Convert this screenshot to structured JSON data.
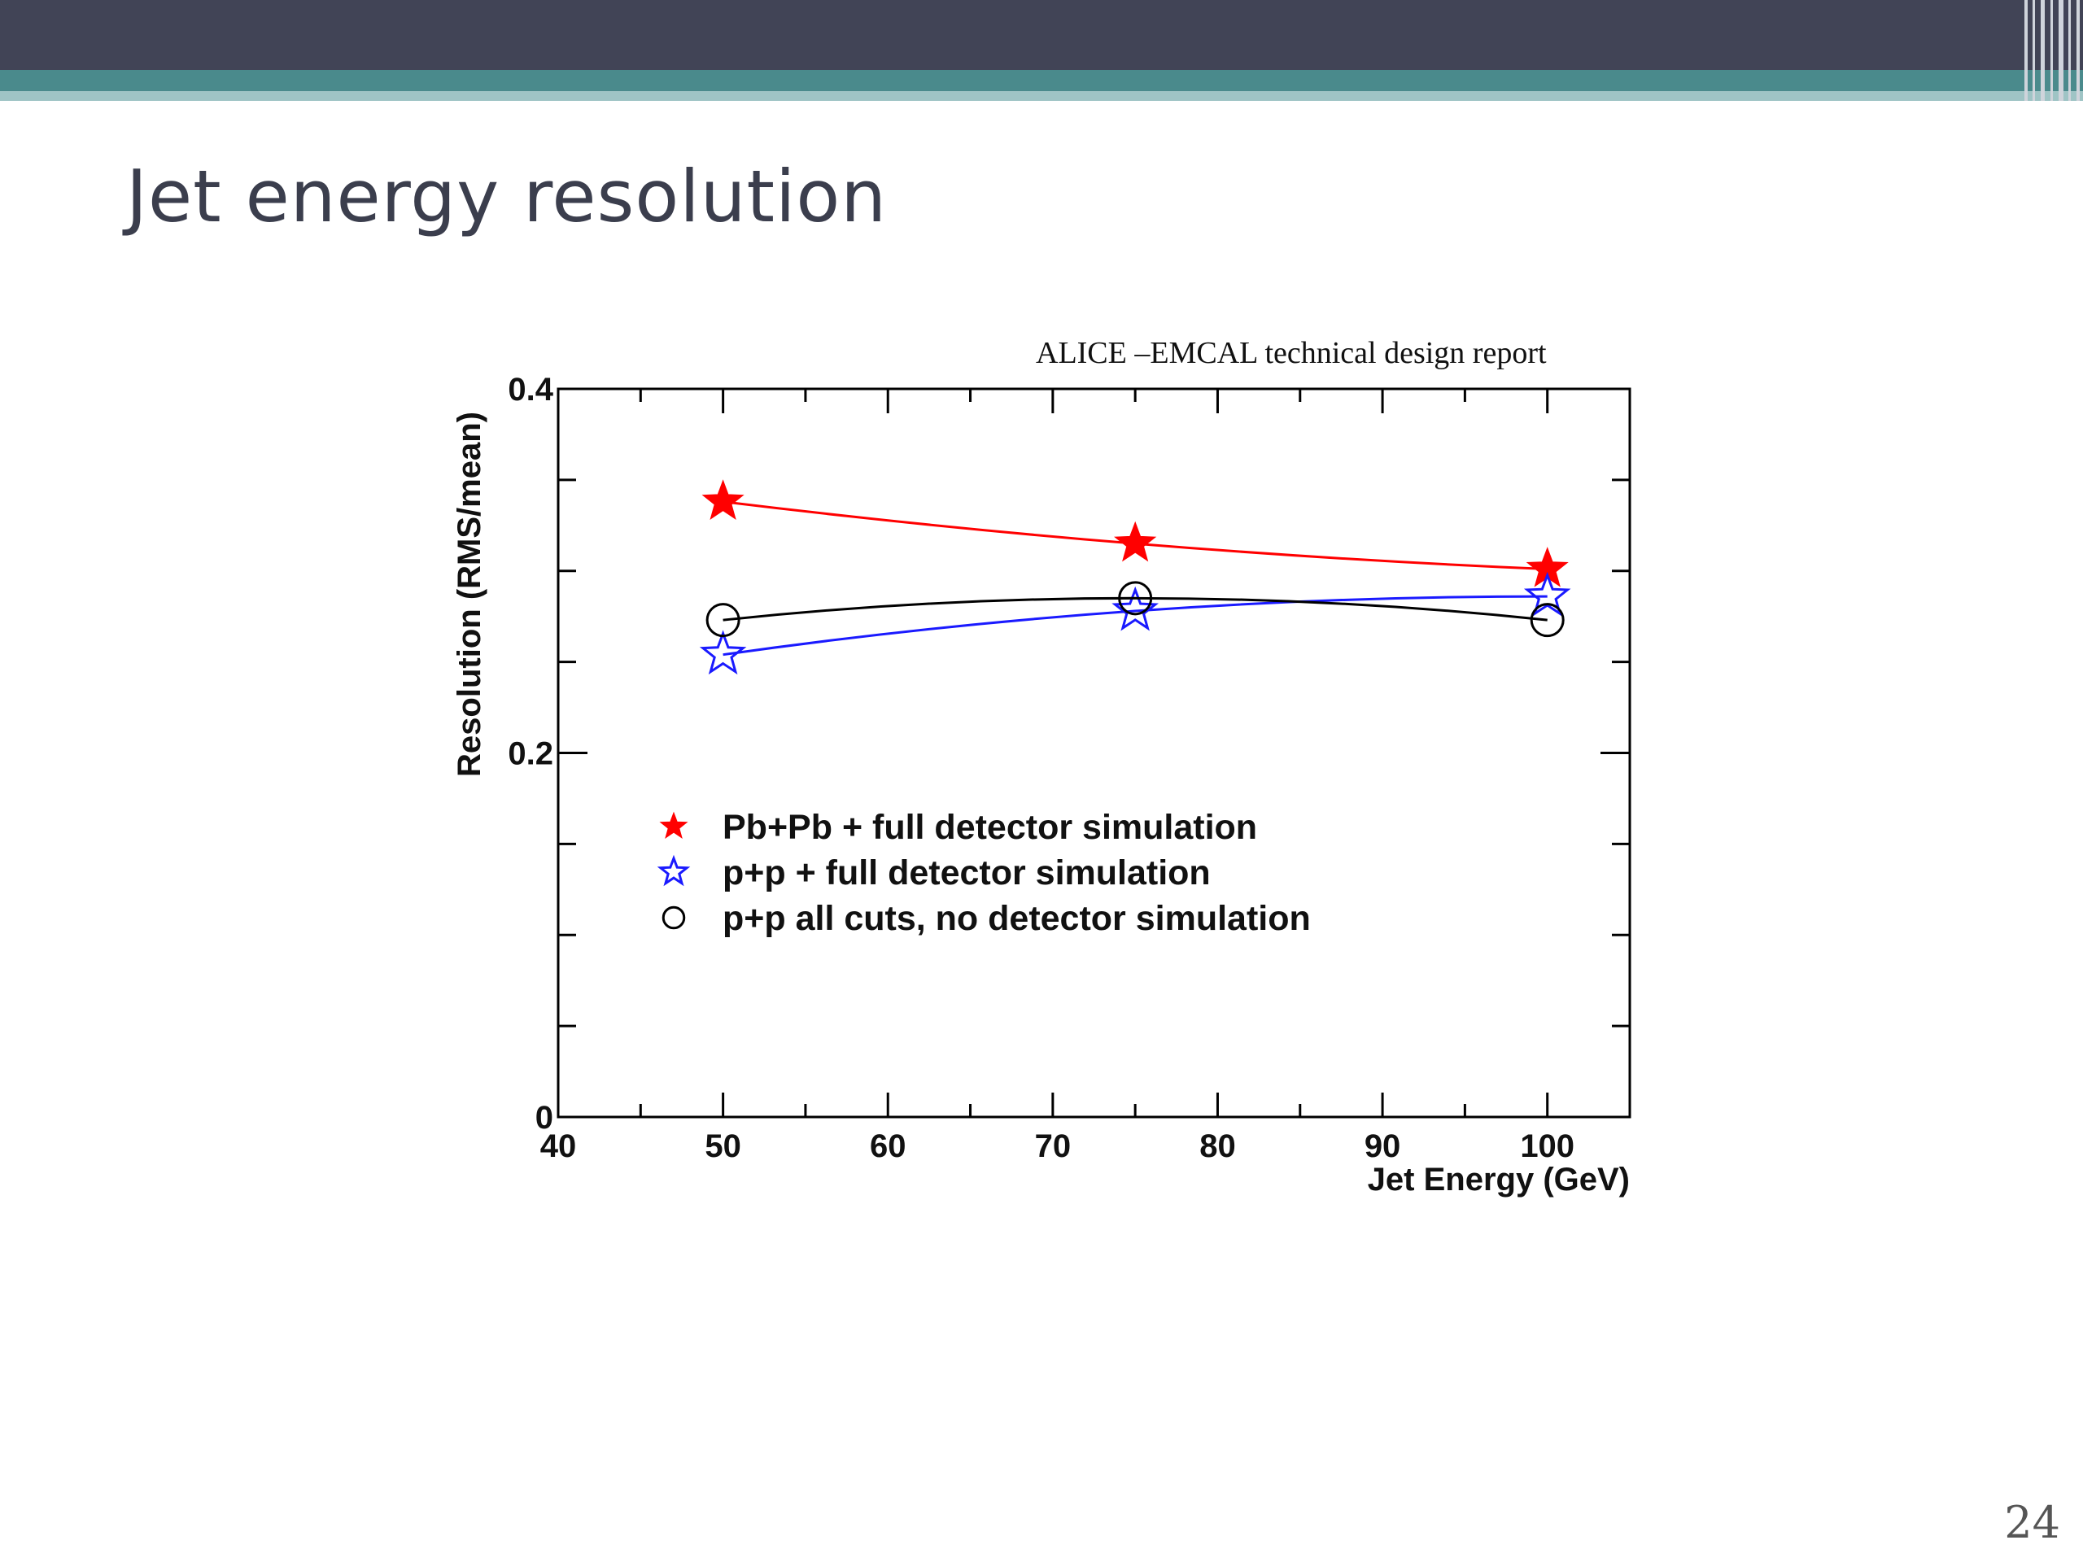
{
  "slide": {
    "title": "Jet energy resolution",
    "source_caption": "ALICE –EMCAL technical design report",
    "page_number": "24",
    "colors": {
      "top_bar": "#414456",
      "teal_band": "#4a8a8c",
      "title_text": "#3b3e4d"
    }
  },
  "chart_data": {
    "type": "line",
    "xlabel": "Jet Energy (GeV)",
    "ylabel": "Resolution (RMS/mean)",
    "xlim": [
      40,
      105
    ],
    "ylim": [
      0,
      0.4
    ],
    "x_ticks": [
      "40",
      "50",
      "60",
      "70",
      "80",
      "90",
      "100"
    ],
    "y_ticks": [
      "0",
      "0.2",
      "0.4"
    ],
    "grid": false,
    "legend_position": "lower-left",
    "series": [
      {
        "name": "Pb+Pb + full detector simulation",
        "marker": "filled-star",
        "color": "#ff0000",
        "x": [
          50,
          75,
          100
        ],
        "y": [
          0.338,
          0.315,
          0.301
        ]
      },
      {
        "name": "p+p + full detector simulation",
        "marker": "open-star",
        "color": "#1a1aff",
        "x": [
          50,
          75,
          100
        ],
        "y": [
          0.254,
          0.278,
          0.286
        ]
      },
      {
        "name": "p+p all cuts, no detector simulation",
        "marker": "open-circle",
        "color": "#000000",
        "x": [
          50,
          75,
          100
        ],
        "y": [
          0.273,
          0.285,
          0.273
        ]
      }
    ]
  }
}
